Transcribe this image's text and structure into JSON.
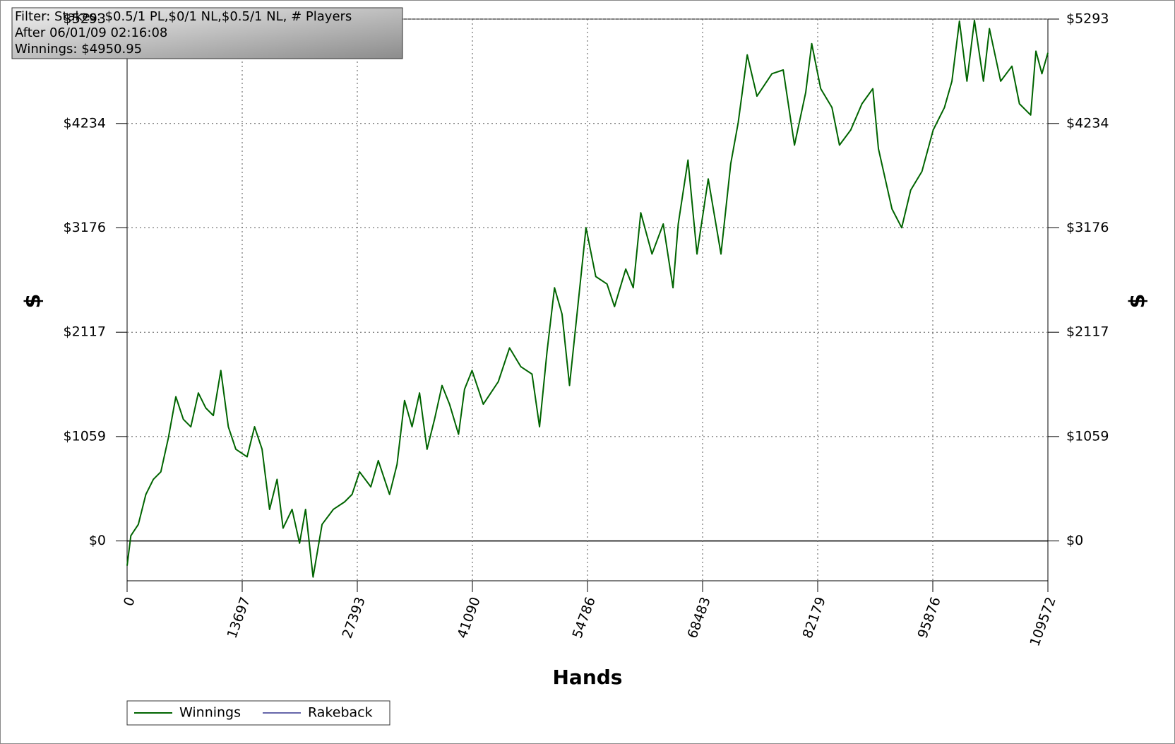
{
  "chart_data": {
    "type": "line",
    "annotations": [
      "Filter: Stakes: $0.5/1 PL,$0/1 NL,$0.5/1 NL, # Players",
      "After 06/01/09 02:16:08",
      "Winnings: $4950.95"
    ],
    "x_label": "Hands",
    "y_label": "$",
    "y2_label": "$",
    "xlim": [
      0,
      109572
    ],
    "xticks": [
      0,
      13697,
      27393,
      41090,
      54786,
      68483,
      82179,
      95876,
      109572
    ],
    "ylim": [
      -404,
      5293
    ],
    "yticks": [
      {
        "value": 0,
        "label": "$0"
      },
      {
        "value": 1059,
        "label": "$1059"
      },
      {
        "value": 2117,
        "label": "$2117"
      },
      {
        "value": 3176,
        "label": "$3176"
      },
      {
        "value": 4234,
        "label": "$4234"
      },
      {
        "value": 5293,
        "label": "$5293"
      }
    ],
    "y2lim": [
      -404,
      5293
    ],
    "y2ticks": [
      {
        "value": 0,
        "label": "$0"
      },
      {
        "value": 1059,
        "label": "$1059"
      },
      {
        "value": 2117,
        "label": "$2117"
      },
      {
        "value": 3176,
        "label": "$3176"
      },
      {
        "value": 4234,
        "label": "$4234"
      }
    ],
    "grid": true,
    "legend": "bottom-left",
    "x": [
      0,
      446,
      1338,
      2231,
      3123,
      4015,
      4907,
      5800,
      6692,
      7584,
      8476,
      9369,
      10261,
      11154,
      12046,
      12938,
      14277,
      15169,
      16061,
      16954,
      17846,
      18560,
      19631,
      20523,
      21237,
      22129,
      23200,
      24538,
      25877,
      26769,
      27661,
      29000,
      29892,
      31231,
      32123,
      33015,
      33907,
      34800,
      35692,
      36584,
      37477,
      38369,
      39440,
      40154,
      41046,
      42385,
      43277,
      44169,
      45508,
      46846,
      48185,
      49077,
      49969,
      50861,
      51754,
      52646,
      53538,
      54609,
      55769,
      57107,
      57999,
      59338,
      60230,
      61123,
      62461,
      63800,
      64960,
      65584,
      66744,
      67815,
      69153,
      70670,
      71830,
      72722,
      73794,
      74953,
      76738,
      78077,
      79415,
      80753,
      81467,
      82538,
      83876,
      84769,
      86107,
      87446,
      88738,
      89409,
      91015,
      92175,
      93245,
      94584,
      95922,
      97261,
      98153,
      99045,
      99938,
      100830,
      101901,
      102615,
      103953,
      105292,
      106184,
      107522,
      108147,
      108861,
      109572
    ],
    "series": [
      {
        "name": "Winnings",
        "color": "#006400",
        "values": [
          -251,
          53,
          168,
          472,
          625,
          701,
          1044,
          1463,
          1234,
          1158,
          1501,
          1348,
          1272,
          1729,
          1158,
          930,
          853,
          1158,
          930,
          320,
          625,
          130,
          320,
          -23,
          320,
          -366,
          168,
          320,
          396,
          472,
          701,
          549,
          815,
          472,
          777,
          1425,
          1158,
          1501,
          930,
          1234,
          1577,
          1387,
          1082,
          1539,
          1729,
          1387,
          1501,
          1615,
          1958,
          1768,
          1692,
          1158,
          1920,
          2568,
          2301,
          1577,
          2301,
          3177,
          2682,
          2606,
          2377,
          2758,
          2568,
          3329,
          2910,
          3215,
          2568,
          3215,
          3863,
          2910,
          3672,
          2910,
          3825,
          4244,
          4930,
          4511,
          4739,
          4777,
          4015,
          4549,
          5044,
          4587,
          4396,
          4015,
          4168,
          4434,
          4587,
          3977,
          3368,
          3177,
          3558,
          3748,
          4168,
          4396,
          4663,
          5272,
          4663,
          5280,
          4663,
          5196,
          4663,
          4815,
          4434,
          4320,
          4968,
          4739,
          4951
        ]
      },
      {
        "name": "Rakeback",
        "color": "#6666aa"
      }
    ]
  }
}
